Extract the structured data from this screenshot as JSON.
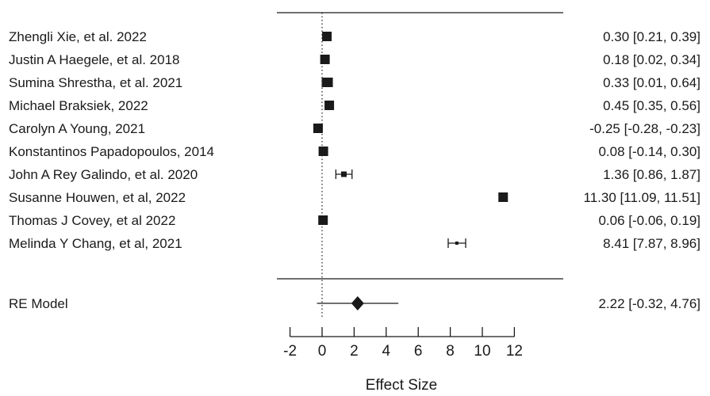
{
  "chart_data": {
    "type": "forest",
    "xlabel": "Effect Size",
    "xlim": [
      -2,
      12
    ],
    "xticks": [
      -2,
      0,
      2,
      4,
      6,
      8,
      10,
      12
    ],
    "reference_line": 0,
    "studies": [
      {
        "label": "Zhengli Xie, et al. 2022",
        "estimate": 0.3,
        "lower": 0.21,
        "upper": 0.39,
        "ci_text": "0.30 [0.21, 0.39]",
        "marker_size": "large"
      },
      {
        "label": "Justin A Haegele, et al. 2018",
        "estimate": 0.18,
        "lower": 0.02,
        "upper": 0.34,
        "ci_text": "0.18 [0.02, 0.34]",
        "marker_size": "large"
      },
      {
        "label": "Sumina Shrestha, et al. 2021",
        "estimate": 0.33,
        "lower": 0.01,
        "upper": 0.64,
        "ci_text": "0.33 [0.01, 0.64]",
        "marker_size": "large"
      },
      {
        "label": "Michael Braksiek, 2022",
        "estimate": 0.45,
        "lower": 0.35,
        "upper": 0.56,
        "ci_text": "0.45 [0.35, 0.56]",
        "marker_size": "large"
      },
      {
        "label": "Carolyn A Young, 2021",
        "estimate": -0.25,
        "lower": -0.28,
        "upper": -0.23,
        "ci_text": "-0.25 [-0.28, -0.23]",
        "marker_size": "large"
      },
      {
        "label": "Konstantinos Papadopoulos, 2014",
        "estimate": 0.08,
        "lower": -0.14,
        "upper": 0.3,
        "ci_text": "0.08 [-0.14, 0.30]",
        "marker_size": "large"
      },
      {
        "label": "John A Rey Galindo, et al. 2020",
        "estimate": 1.36,
        "lower": 0.86,
        "upper": 1.87,
        "ci_text": "1.36 [0.86, 1.87]",
        "marker_size": "medium"
      },
      {
        "label": "Susanne Houwen, et al, 2022",
        "estimate": 11.3,
        "lower": 11.09,
        "upper": 11.51,
        "ci_text": "11.30 [11.09, 11.51]",
        "marker_size": "large"
      },
      {
        "label": "Thomas J Covey, et al 2022",
        "estimate": 0.06,
        "lower": -0.06,
        "upper": 0.19,
        "ci_text": "0.06 [-0.06, 0.19]",
        "marker_size": "large"
      },
      {
        "label": "Melinda Y Chang, et al, 2021",
        "estimate": 8.41,
        "lower": 7.87,
        "upper": 8.96,
        "ci_text": "8.41 [7.87, 8.96]",
        "marker_size": "small"
      }
    ],
    "summary": {
      "label": "RE Model",
      "estimate": 2.22,
      "lower": -0.32,
      "upper": 4.76,
      "ci_text": "2.22 [-0.32, 4.76]"
    },
    "colors": {
      "ink": "#1a1a1a",
      "background": "#ffffff"
    }
  }
}
